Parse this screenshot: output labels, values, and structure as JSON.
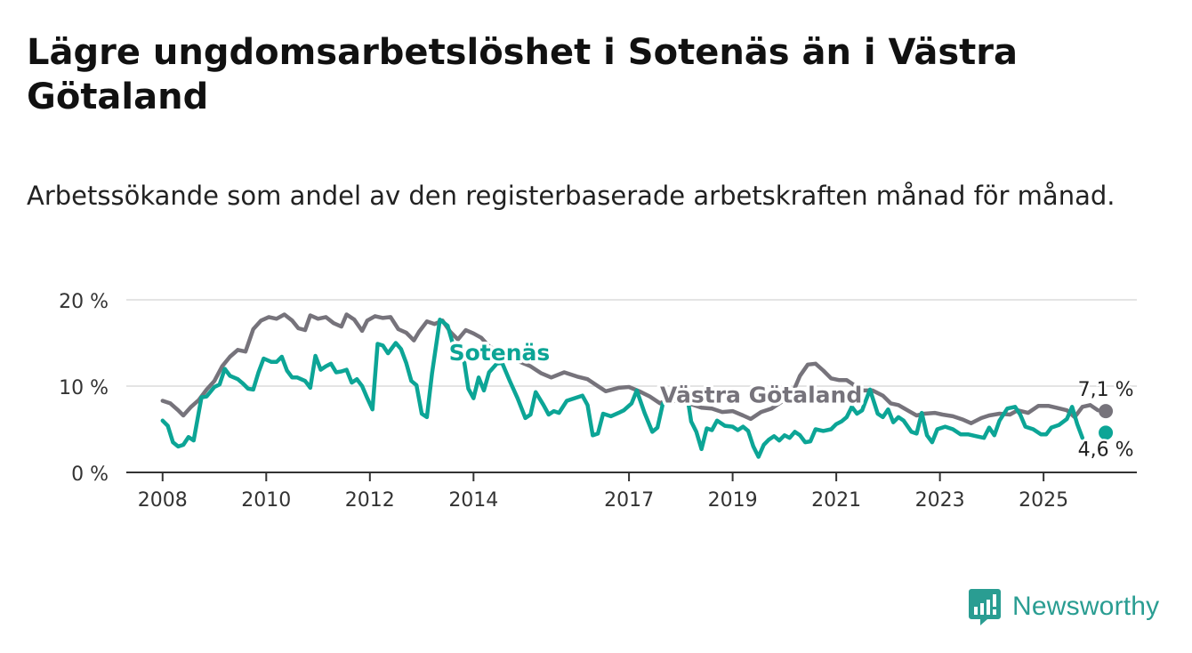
{
  "title": "Lägre ungdomsarbetslöshet i Sotenäs än i Västra Götaland",
  "subtitle": "Arbetssökande som andel av den registerbaserade arbetskraften månad för månad.",
  "brand": "Newsworthy",
  "colors": {
    "sotenas": "#0ca596",
    "vastra": "#76737b",
    "grid": "#dcdcdc",
    "axis": "#333333",
    "brand": "#2a9d92"
  },
  "chart_data": {
    "type": "line",
    "title": "Lägre ungdomsarbetslöshet i Sotenäs än i Västra Götaland",
    "xlabel": "",
    "ylabel": "",
    "x_range": [
      2007.3,
      2026.8
    ],
    "ylim": [
      0,
      20
    ],
    "y_ticks": [
      {
        "value": 0,
        "label": "0 %"
      },
      {
        "value": 10,
        "label": "10 %"
      },
      {
        "value": 20,
        "label": "20 %"
      }
    ],
    "x_ticks": [
      {
        "value": 2008,
        "label": "2008"
      },
      {
        "value": 2010,
        "label": "2010"
      },
      {
        "value": 2012,
        "label": "2012"
      },
      {
        "value": 2014,
        "label": "2014"
      },
      {
        "value": 2017,
        "label": "2017"
      },
      {
        "value": 2019,
        "label": "2019"
      },
      {
        "value": 2021,
        "label": "2021"
      },
      {
        "value": 2023,
        "label": "2023"
      },
      {
        "value": 2025,
        "label": "2025"
      }
    ],
    "series": [
      {
        "name": "Västra Götaland",
        "color": "#76737b",
        "end_label": "7,1 %",
        "points": [
          [
            2008.0,
            8.3
          ],
          [
            2008.15,
            8.0
          ],
          [
            2008.3,
            7.2
          ],
          [
            2008.4,
            6.6
          ],
          [
            2008.55,
            7.6
          ],
          [
            2008.7,
            8.4
          ],
          [
            2008.85,
            9.6
          ],
          [
            2009.0,
            10.6
          ],
          [
            2009.15,
            12.3
          ],
          [
            2009.3,
            13.4
          ],
          [
            2009.45,
            14.2
          ],
          [
            2009.6,
            14.0
          ],
          [
            2009.75,
            16.6
          ],
          [
            2009.9,
            17.6
          ],
          [
            2010.05,
            18.0
          ],
          [
            2010.2,
            17.8
          ],
          [
            2010.35,
            18.3
          ],
          [
            2010.5,
            17.6
          ],
          [
            2010.62,
            16.7
          ],
          [
            2010.75,
            16.5
          ],
          [
            2010.85,
            18.2
          ],
          [
            2011.0,
            17.8
          ],
          [
            2011.15,
            18.0
          ],
          [
            2011.3,
            17.3
          ],
          [
            2011.45,
            16.9
          ],
          [
            2011.55,
            18.3
          ],
          [
            2011.7,
            17.7
          ],
          [
            2011.85,
            16.4
          ],
          [
            2011.95,
            17.6
          ],
          [
            2012.1,
            18.1
          ],
          [
            2012.25,
            17.9
          ],
          [
            2012.4,
            18.0
          ],
          [
            2012.55,
            16.6
          ],
          [
            2012.7,
            16.2
          ],
          [
            2012.85,
            15.3
          ],
          [
            2012.95,
            16.3
          ],
          [
            2013.1,
            17.5
          ],
          [
            2013.25,
            17.2
          ],
          [
            2013.4,
            17.6
          ],
          [
            2013.55,
            16.3
          ],
          [
            2013.7,
            15.4
          ],
          [
            2013.85,
            16.5
          ],
          [
            2014.0,
            16.1
          ],
          [
            2014.15,
            15.6
          ],
          [
            2014.3,
            14.6
          ],
          [
            2014.5,
            14.0
          ],
          [
            2014.7,
            13.4
          ],
          [
            2014.9,
            12.8
          ],
          [
            2015.1,
            12.3
          ],
          [
            2015.3,
            11.5
          ],
          [
            2015.5,
            11.0
          ],
          [
            2015.75,
            11.6
          ],
          [
            2016.0,
            11.1
          ],
          [
            2016.2,
            10.8
          ],
          [
            2016.4,
            10.0
          ],
          [
            2016.55,
            9.4
          ],
          [
            2016.8,
            9.8
          ],
          [
            2017.0,
            9.9
          ],
          [
            2017.2,
            9.4
          ],
          [
            2017.4,
            8.8
          ],
          [
            2017.6,
            8.0
          ],
          [
            2017.75,
            8.5
          ],
          [
            2017.95,
            8.2
          ],
          [
            2018.2,
            7.9
          ],
          [
            2018.4,
            7.5
          ],
          [
            2018.6,
            7.4
          ],
          [
            2018.8,
            7.0
          ],
          [
            2019.0,
            7.1
          ],
          [
            2019.2,
            6.6
          ],
          [
            2019.35,
            6.2
          ],
          [
            2019.55,
            7.0
          ],
          [
            2019.75,
            7.4
          ],
          [
            2019.95,
            8.2
          ],
          [
            2020.15,
            9.1
          ],
          [
            2020.3,
            11.2
          ],
          [
            2020.45,
            12.5
          ],
          [
            2020.6,
            12.6
          ],
          [
            2020.75,
            11.8
          ],
          [
            2020.9,
            10.9
          ],
          [
            2021.05,
            10.7
          ],
          [
            2021.2,
            10.7
          ],
          [
            2021.35,
            10.1
          ],
          [
            2021.5,
            9.5
          ],
          [
            2021.7,
            9.5
          ],
          [
            2021.9,
            8.9
          ],
          [
            2022.05,
            8.0
          ],
          [
            2022.2,
            7.8
          ],
          [
            2022.4,
            7.1
          ],
          [
            2022.55,
            6.6
          ],
          [
            2022.7,
            6.8
          ],
          [
            2022.9,
            6.9
          ],
          [
            2023.05,
            6.7
          ],
          [
            2023.25,
            6.5
          ],
          [
            2023.45,
            6.1
          ],
          [
            2023.6,
            5.7
          ],
          [
            2023.8,
            6.3
          ],
          [
            2023.95,
            6.6
          ],
          [
            2024.15,
            6.8
          ],
          [
            2024.35,
            6.7
          ],
          [
            2024.5,
            7.2
          ],
          [
            2024.7,
            6.9
          ],
          [
            2024.9,
            7.7
          ],
          [
            2025.1,
            7.7
          ],
          [
            2025.25,
            7.5
          ],
          [
            2025.45,
            7.2
          ],
          [
            2025.6,
            6.4
          ],
          [
            2025.75,
            7.6
          ],
          [
            2025.9,
            7.8
          ],
          [
            2026.05,
            7.2
          ]
        ]
      },
      {
        "name": "Sotenäs",
        "color": "#0ca596",
        "end_label": "4,6 %",
        "points": [
          [
            2008.0,
            6.0
          ],
          [
            2008.1,
            5.4
          ],
          [
            2008.2,
            3.5
          ],
          [
            2008.3,
            3.0
          ],
          [
            2008.4,
            3.2
          ],
          [
            2008.5,
            4.1
          ],
          [
            2008.6,
            3.7
          ],
          [
            2008.75,
            8.7
          ],
          [
            2008.85,
            8.8
          ],
          [
            2009.0,
            9.9
          ],
          [
            2009.1,
            10.2
          ],
          [
            2009.2,
            12.0
          ],
          [
            2009.3,
            11.2
          ],
          [
            2009.45,
            10.8
          ],
          [
            2009.55,
            10.3
          ],
          [
            2009.65,
            9.7
          ],
          [
            2009.75,
            9.6
          ],
          [
            2009.85,
            11.6
          ],
          [
            2009.95,
            13.2
          ],
          [
            2010.1,
            12.8
          ],
          [
            2010.2,
            12.8
          ],
          [
            2010.3,
            13.4
          ],
          [
            2010.4,
            11.8
          ],
          [
            2010.5,
            11.0
          ],
          [
            2010.6,
            11.0
          ],
          [
            2010.75,
            10.6
          ],
          [
            2010.85,
            9.8
          ],
          [
            2010.95,
            13.5
          ],
          [
            2011.05,
            11.9
          ],
          [
            2011.15,
            12.3
          ],
          [
            2011.25,
            12.6
          ],
          [
            2011.35,
            11.6
          ],
          [
            2011.45,
            11.7
          ],
          [
            2011.55,
            11.9
          ],
          [
            2011.65,
            10.4
          ],
          [
            2011.75,
            10.8
          ],
          [
            2011.85,
            10.0
          ],
          [
            2011.95,
            8.6
          ],
          [
            2012.05,
            7.3
          ],
          [
            2012.15,
            14.9
          ],
          [
            2012.25,
            14.7
          ],
          [
            2012.35,
            13.8
          ],
          [
            2012.5,
            15.0
          ],
          [
            2012.6,
            14.3
          ],
          [
            2012.7,
            12.7
          ],
          [
            2012.8,
            10.6
          ],
          [
            2012.9,
            10.1
          ],
          [
            2013.0,
            6.8
          ],
          [
            2013.1,
            6.4
          ],
          [
            2013.2,
            11.5
          ],
          [
            2013.35,
            17.7
          ],
          [
            2013.5,
            17.0
          ],
          [
            2013.65,
            13.9
          ],
          [
            2013.8,
            13.6
          ],
          [
            2013.9,
            9.7
          ],
          [
            2014.0,
            8.6
          ],
          [
            2014.1,
            11.0
          ],
          [
            2014.2,
            9.5
          ],
          [
            2014.3,
            11.6
          ],
          [
            2014.45,
            12.6
          ],
          [
            2014.55,
            12.7
          ],
          [
            2014.7,
            10.6
          ],
          [
            2014.85,
            8.6
          ],
          [
            2015.0,
            6.3
          ],
          [
            2015.1,
            6.7
          ],
          [
            2015.2,
            9.3
          ],
          [
            2015.35,
            7.8
          ],
          [
            2015.45,
            6.7
          ],
          [
            2015.55,
            7.1
          ],
          [
            2015.65,
            6.9
          ],
          [
            2015.8,
            8.3
          ],
          [
            2015.95,
            8.6
          ],
          [
            2016.1,
            8.9
          ],
          [
            2016.2,
            7.8
          ],
          [
            2016.3,
            4.3
          ],
          [
            2016.4,
            4.5
          ],
          [
            2016.5,
            6.8
          ],
          [
            2016.65,
            6.5
          ],
          [
            2016.8,
            6.9
          ],
          [
            2016.9,
            7.2
          ],
          [
            2017.05,
            8.0
          ],
          [
            2017.15,
            9.5
          ],
          [
            2017.3,
            6.9
          ],
          [
            2017.45,
            4.7
          ],
          [
            2017.55,
            5.2
          ],
          [
            2017.65,
            7.9
          ],
          [
            2017.8,
            9.3
          ],
          [
            2017.9,
            9.5
          ],
          [
            2018.0,
            9.0
          ],
          [
            2018.1,
            9.8
          ],
          [
            2018.2,
            5.9
          ],
          [
            2018.3,
            4.7
          ],
          [
            2018.4,
            2.7
          ],
          [
            2018.5,
            5.1
          ],
          [
            2018.6,
            4.9
          ],
          [
            2018.7,
            6.0
          ],
          [
            2018.85,
            5.4
          ],
          [
            2019.0,
            5.3
          ],
          [
            2019.1,
            4.9
          ],
          [
            2019.2,
            5.3
          ],
          [
            2019.3,
            4.8
          ],
          [
            2019.4,
            3.0
          ],
          [
            2019.5,
            1.8
          ],
          [
            2019.6,
            3.2
          ],
          [
            2019.7,
            3.8
          ],
          [
            2019.8,
            4.2
          ],
          [
            2019.9,
            3.7
          ],
          [
            2020.0,
            4.3
          ],
          [
            2020.1,
            4.0
          ],
          [
            2020.2,
            4.7
          ],
          [
            2020.3,
            4.3
          ],
          [
            2020.4,
            3.5
          ],
          [
            2020.5,
            3.6
          ],
          [
            2020.6,
            5.0
          ],
          [
            2020.75,
            4.8
          ],
          [
            2020.9,
            5.0
          ],
          [
            2021.0,
            5.6
          ],
          [
            2021.1,
            5.9
          ],
          [
            2021.2,
            6.4
          ],
          [
            2021.3,
            7.6
          ],
          [
            2021.4,
            6.8
          ],
          [
            2021.5,
            7.2
          ],
          [
            2021.65,
            9.6
          ],
          [
            2021.8,
            6.8
          ],
          [
            2021.9,
            6.4
          ],
          [
            2022.0,
            7.3
          ],
          [
            2022.1,
            5.8
          ],
          [
            2022.2,
            6.4
          ],
          [
            2022.3,
            6.0
          ],
          [
            2022.45,
            4.7
          ],
          [
            2022.55,
            4.5
          ],
          [
            2022.65,
            6.9
          ],
          [
            2022.75,
            4.3
          ],
          [
            2022.85,
            3.5
          ],
          [
            2022.95,
            5.0
          ],
          [
            2023.1,
            5.3
          ],
          [
            2023.25,
            5.0
          ],
          [
            2023.4,
            4.4
          ],
          [
            2023.55,
            4.4
          ],
          [
            2023.7,
            4.2
          ],
          [
            2023.85,
            4.0
          ],
          [
            2023.95,
            5.2
          ],
          [
            2024.05,
            4.3
          ],
          [
            2024.15,
            6.0
          ],
          [
            2024.3,
            7.4
          ],
          [
            2024.45,
            7.6
          ],
          [
            2024.55,
            6.7
          ],
          [
            2024.65,
            5.3
          ],
          [
            2024.8,
            5.0
          ],
          [
            2024.95,
            4.4
          ],
          [
            2025.05,
            4.4
          ],
          [
            2025.15,
            5.2
          ],
          [
            2025.3,
            5.5
          ],
          [
            2025.45,
            6.2
          ],
          [
            2025.55,
            7.6
          ],
          [
            2025.65,
            5.6
          ],
          [
            2025.75,
            4.0
          ]
        ]
      }
    ],
    "endpoints": [
      {
        "series": "Västra Götaland",
        "x": 2026.2,
        "y": 7.1,
        "label": "7,1 %"
      },
      {
        "series": "Sotenäs",
        "x": 2026.2,
        "y": 4.6,
        "label": "4,6 %"
      }
    ],
    "annotations": [
      {
        "series": "Sotenäs",
        "text": "Sotenäs",
        "x": 2014.5,
        "y": 13.0
      },
      {
        "series": "Västra Götaland",
        "text": "Västra Götaland",
        "x": 2019.55,
        "y": 8.1
      }
    ]
  }
}
